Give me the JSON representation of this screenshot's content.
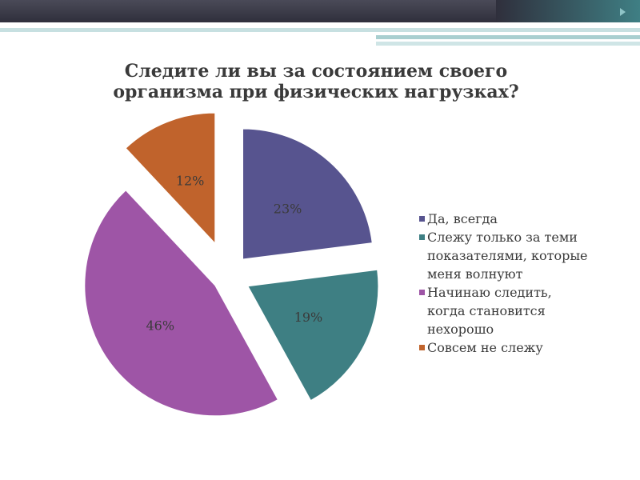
{
  "chart_data": {
    "type": "pie",
    "title_lines": [
      "Следите ли вы за состоянием своего",
      "организма при физических нагрузках?"
    ],
    "slices": [
      {
        "legend_lines": [
          "Да, всегда"
        ],
        "value": 23,
        "label": "23%",
        "color": "#57548f"
      },
      {
        "legend_lines": [
          "Слежу только за теми",
          "показателями, которые",
          "меня волнуют"
        ],
        "value": 19,
        "label": "19%",
        "color": "#3e7f83"
      },
      {
        "legend_lines": [
          "Начинаю следить,",
          "когда становится",
          "нехорошо"
        ],
        "value": 46,
        "label": "46%",
        "color": "#9e55a6"
      },
      {
        "legend_lines": [
          "Совсем не слежу"
        ],
        "value": 12,
        "label": "12%",
        "color": "#c0632c"
      }
    ],
    "exploded": true,
    "legend_position": "right"
  }
}
